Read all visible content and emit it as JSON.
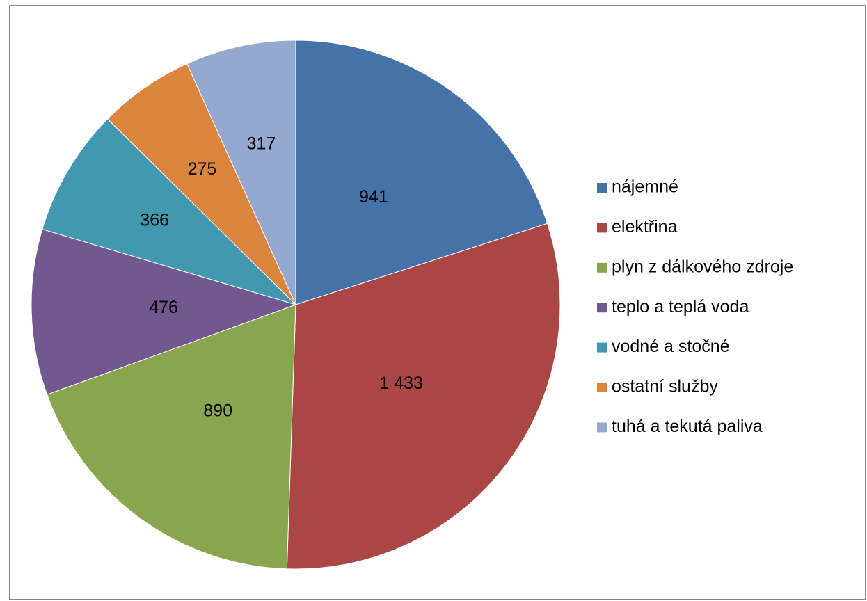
{
  "chart_data": {
    "type": "pie",
    "categories": [
      "nájemné",
      "elektřina",
      "plyn z dálkového zdroje",
      "teplo a teplá voda",
      "vodné a stočné",
      "ostatní služby",
      "tuhá a tekutá paliva"
    ],
    "values": [
      941,
      1433,
      890,
      476,
      366,
      275,
      317
    ],
    "value_labels": [
      "941",
      "1 433",
      "890",
      "476",
      "366",
      "275",
      "317"
    ],
    "colors": [
      "#4572a7",
      "#aa4643",
      "#89a54e",
      "#71588f",
      "#4198af",
      "#db843d",
      "#93a9cf"
    ],
    "legend": "right"
  }
}
